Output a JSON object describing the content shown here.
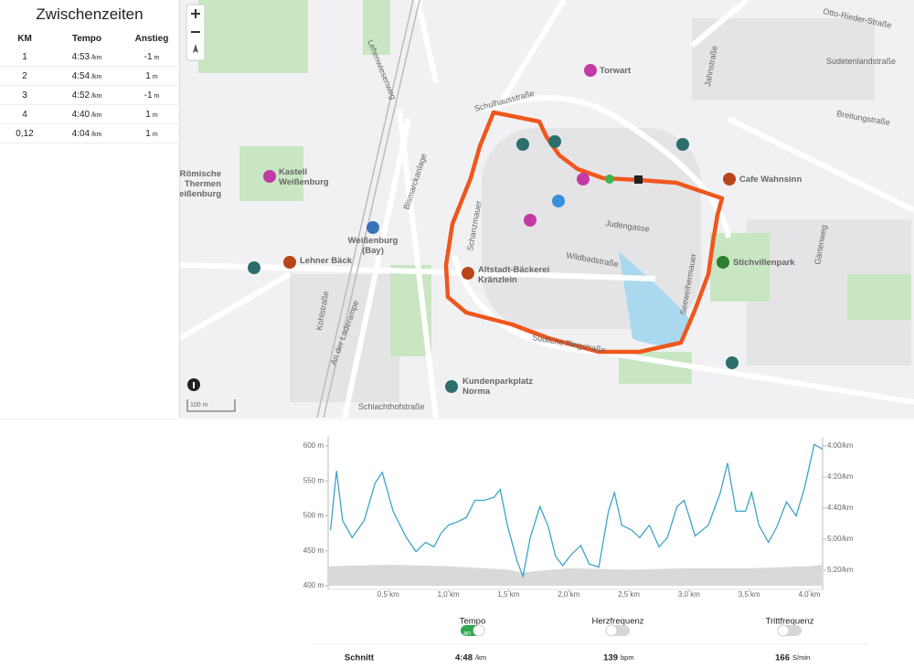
{
  "splits": {
    "title": "Zwischenzeiten",
    "columns": [
      "KM",
      "Tempo",
      "Anstieg"
    ],
    "rows": [
      {
        "km": "1",
        "tempo": "4:53",
        "tempo_unit": "/km",
        "climb": "-1",
        "climb_unit": "m"
      },
      {
        "km": "2",
        "tempo": "4:54",
        "tempo_unit": "/km",
        "climb": "1",
        "climb_unit": "m"
      },
      {
        "km": "3",
        "tempo": "4:52",
        "tempo_unit": "/km",
        "climb": "-1",
        "climb_unit": "m"
      },
      {
        "km": "4",
        "tempo": "4:40",
        "tempo_unit": "/km",
        "climb": "1",
        "climb_unit": "m"
      },
      {
        "km": "0,12",
        "tempo": "4:04",
        "tempo_unit": "/km",
        "climb": "1",
        "climb_unit": "m"
      }
    ]
  },
  "map": {
    "streets": [
      "Otto-Rieder-Straße",
      "Sudetenlandstraße",
      "Breitungstraße",
      "Jahnstraße",
      "Schulhausstraße",
      "Lehenwiesenweg",
      "Bismarckanlage",
      "Judengasse",
      "Wildbadstraße",
      "Schanzmauer",
      "Gärtenweg",
      "Seeweihermauer",
      "Südliche Ringstraße",
      "Kohlstraße",
      "An der Laderampe",
      "Schlachthofstraße"
    ],
    "pois": [
      {
        "lines": [
          "Torwart"
        ]
      },
      {
        "lines": [
          "Kastell",
          "Weißenburg"
        ]
      },
      {
        "lines": [
          "Römische",
          "Thermen",
          "Weißenburg"
        ]
      },
      {
        "lines": [
          "Cafe Wahnsinn"
        ]
      },
      {
        "lines": [
          "Weißenburg",
          "(Bay)"
        ]
      },
      {
        "lines": [
          "Altstadt-Bäckerei",
          "Kränzlein"
        ]
      },
      {
        "lines": [
          "Lehner Bäck"
        ]
      },
      {
        "lines": [
          "Stichvillenpark"
        ]
      },
      {
        "lines": [
          "Kundenparkplatz",
          "Norma"
        ]
      }
    ],
    "scale": "100 m"
  },
  "chart": {
    "type": "line",
    "xlim": [
      0,
      4.11
    ],
    "xticks": [
      {
        "value": 0.5,
        "label": "0,5 km"
      },
      {
        "value": 1.0,
        "label": "1,0 km"
      },
      {
        "value": 1.5,
        "label": "1,5 km"
      },
      {
        "value": 2.0,
        "label": "2,0 km"
      },
      {
        "value": 2.5,
        "label": "2,5 km"
      },
      {
        "value": 3.0,
        "label": "3,0 km"
      },
      {
        "value": 3.5,
        "label": "3,5 km"
      },
      {
        "value": 4.0,
        "label": "4,0 km"
      }
    ],
    "ylim": [
      400,
      600
    ],
    "yticks": [
      {
        "value": 400,
        "label": "400 m"
      },
      {
        "value": 450,
        "label": "450 m"
      },
      {
        "value": 500,
        "label": "500 m"
      },
      {
        "value": 550,
        "label": "550 m"
      },
      {
        "value": 600,
        "label": "600 m"
      }
    ],
    "y2lim": [
      330,
      240
    ],
    "y2ticks": [
      {
        "value": 240,
        "label": "4:00/km"
      },
      {
        "value": 260,
        "label": "4:20/km"
      },
      {
        "value": 280,
        "label": "4:40/km"
      },
      {
        "value": 300,
        "label": "5:00/km"
      },
      {
        "value": 320,
        "label": "5:20/km"
      }
    ],
    "series": [
      {
        "kind": "area",
        "color": "#d9d9da",
        "x": [
          0,
          0.5,
          1.0,
          1.5,
          1.6,
          2.0,
          2.5,
          3.0,
          3.5,
          4.0,
          4.11
        ],
        "values": [
          428,
          430,
          428,
          423,
          419,
          425,
          423,
          425,
          425,
          428,
          430
        ]
      },
      {
        "kind": "line",
        "axis": "y2",
        "color": "#3ba4c9",
        "x": [
          0.02,
          0.07,
          0.12,
          0.2,
          0.3,
          0.39,
          0.45,
          0.54,
          0.65,
          0.73,
          0.81,
          0.88,
          0.94,
          1.0,
          1.07,
          1.15,
          1.22,
          1.3,
          1.38,
          1.43,
          1.49,
          1.57,
          1.62,
          1.68,
          1.76,
          1.83,
          1.89,
          1.95,
          2.02,
          2.1,
          2.17,
          2.25,
          2.33,
          2.38,
          2.44,
          2.52,
          2.59,
          2.67,
          2.75,
          2.82,
          2.9,
          2.96,
          3.05,
          3.16,
          3.26,
          3.32,
          3.39,
          3.47,
          3.52,
          3.58,
          3.66,
          3.73,
          3.81,
          3.89,
          3.96,
          4.04,
          4.11
        ],
        "values": [
          294,
          256,
          288,
          299,
          288,
          264,
          257,
          282,
          299,
          308,
          302,
          305,
          296,
          291,
          289,
          286,
          275,
          275,
          273,
          268,
          291,
          314,
          324,
          299,
          279,
          292,
          311,
          317,
          310,
          304,
          316,
          318,
          282,
          270,
          291,
          294,
          299,
          291,
          305,
          299,
          279,
          275,
          298,
          291,
          270,
          251,
          282,
          282,
          270,
          291,
          302,
          292,
          276,
          285,
          267,
          239,
          242
        ]
      }
    ]
  },
  "toggles": [
    {
      "label": "Tempo",
      "on": true,
      "state_label": "an"
    },
    {
      "label": "Herzfrequenz",
      "on": false
    },
    {
      "label": "Trittfrequenz",
      "on": false
    }
  ],
  "summary": {
    "label": "Schnitt",
    "tempo": "4:48",
    "tempo_unit": "/km",
    "heart": "139",
    "heart_unit": "bpm",
    "cadence": "166",
    "cadence_unit": "S/min"
  }
}
